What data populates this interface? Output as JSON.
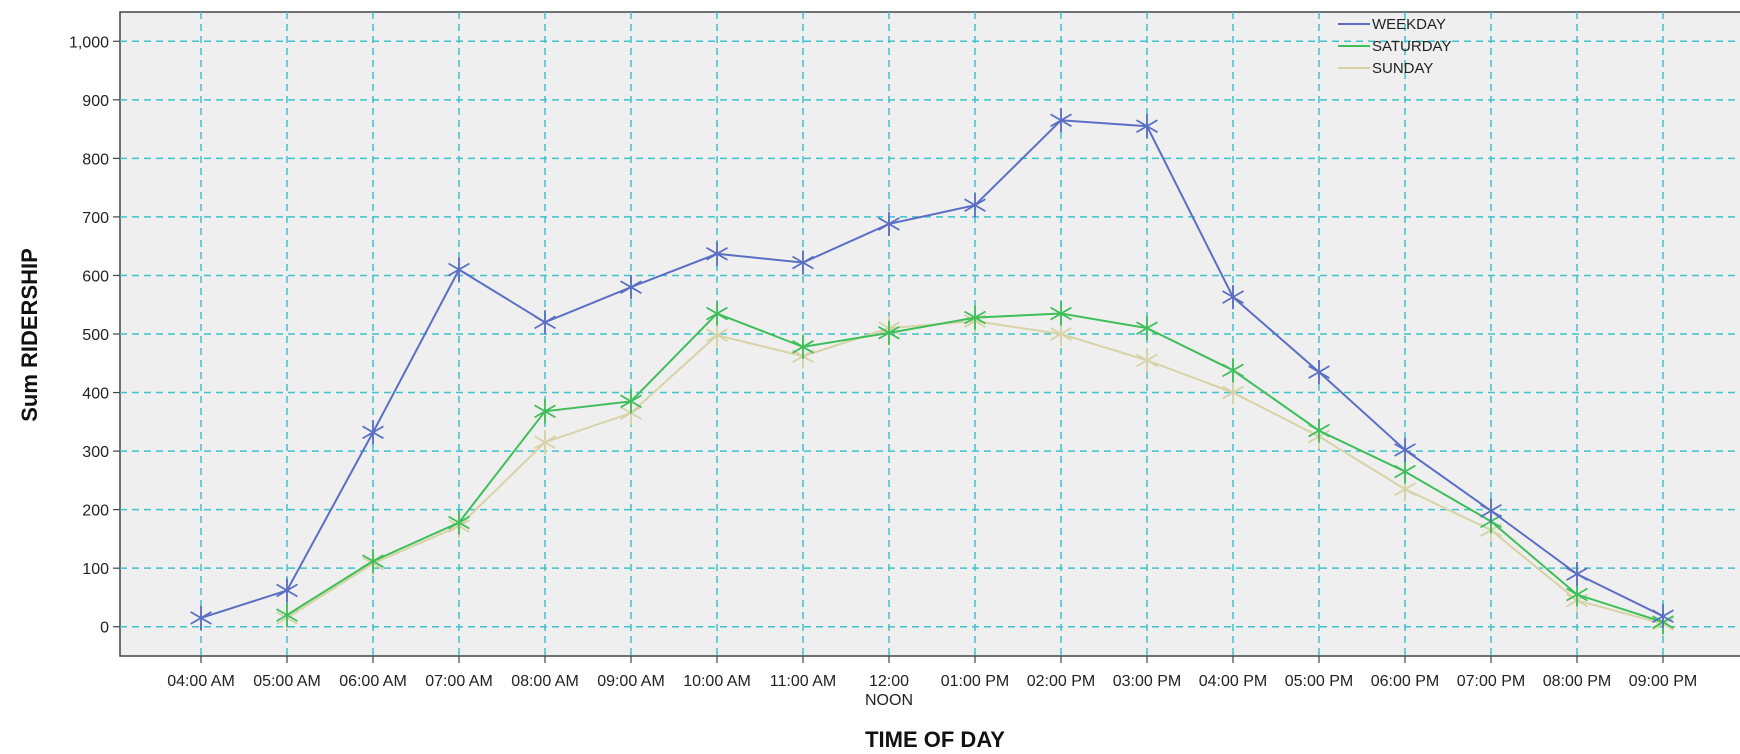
{
  "chart_data": {
    "type": "line",
    "title": "",
    "xlabel": "TIME OF DAY",
    "ylabel": "Sum RIDERSHIP",
    "ylim": [
      -50,
      1050
    ],
    "yticks": [
      0,
      100,
      200,
      300,
      400,
      500,
      600,
      700,
      800,
      900,
      1000
    ],
    "ytick_labels": [
      "0",
      "100",
      "200",
      "300",
      "400",
      "500",
      "600",
      "700",
      "800",
      "900",
      "1,000"
    ],
    "grid": true,
    "legend_position": "top-right",
    "marker": "asterisk",
    "categories": [
      "04:00 AM",
      "05:00 AM",
      "06:00 AM",
      "07:00 AM",
      "08:00 AM",
      "09:00 AM",
      "10:00 AM",
      "11:00 AM",
      "12:00\nNOON",
      "01:00 PM",
      "02:00 PM",
      "03:00 PM",
      "04:00 PM",
      "05:00 PM",
      "06:00 PM",
      "07:00 PM",
      "08:00 PM",
      "09:00 PM"
    ],
    "series": [
      {
        "name": "WEEKDAY",
        "color": "#5a6fc4",
        "values": [
          15,
          62,
          332,
          610,
          520,
          580,
          637,
          622,
          688,
          720,
          865,
          855,
          563,
          435,
          302,
          198,
          90,
          18
        ]
      },
      {
        "name": "SATURDAY",
        "color": "#3fbf5a",
        "values": [
          null,
          20,
          112,
          178,
          368,
          385,
          535,
          478,
          502,
          528,
          535,
          510,
          438,
          335,
          265,
          180,
          55,
          8
        ]
      },
      {
        "name": "SUNDAY",
        "color": "#d8d3a6",
        "values": [
          null,
          15,
          108,
          172,
          315,
          365,
          498,
          462,
          510,
          522,
          500,
          455,
          400,
          325,
          235,
          165,
          45,
          5
        ]
      }
    ]
  }
}
